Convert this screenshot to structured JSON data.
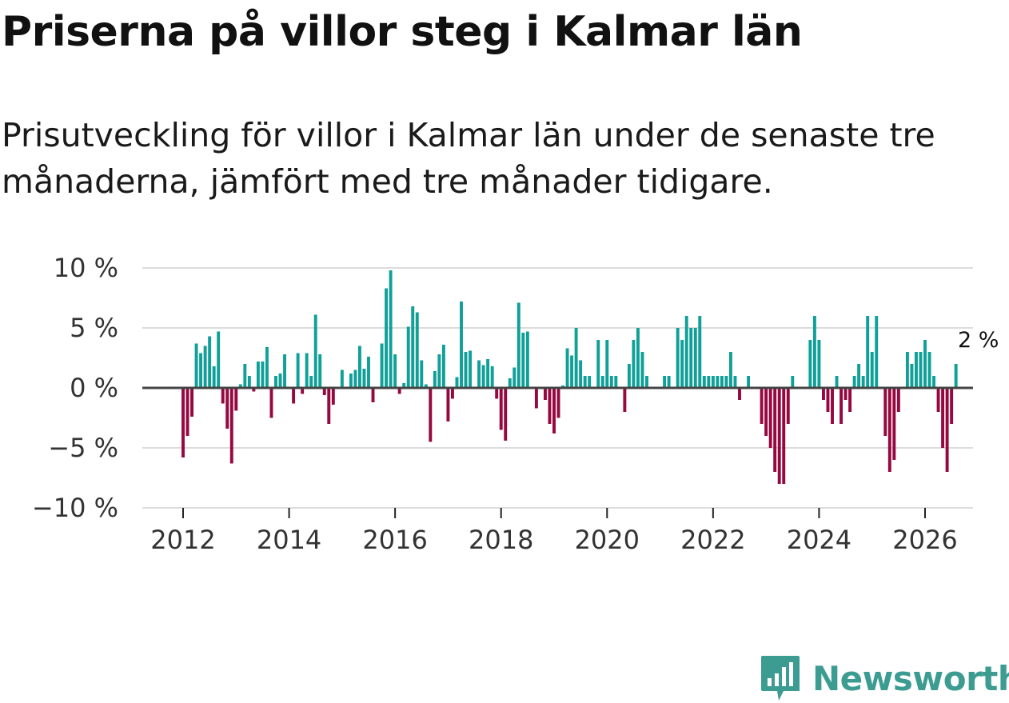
{
  "header": {
    "title": "Priserna på villor steg i Kalmar län",
    "subtitle": "Prisutveckling för villor i Kalmar län under de senaste tre månaderna, jämfört med tre månader tidigare."
  },
  "brand": {
    "name": "Newsworthy"
  },
  "colors": {
    "positive": "#10a098",
    "negative": "#960840",
    "grid": "#dcdcdc",
    "axis": "#444444"
  },
  "chart_data": {
    "type": "bar",
    "title": "Priserna på villor steg i Kalmar län",
    "xlabel": "",
    "ylabel": "",
    "ylim": [
      -10,
      10
    ],
    "y_ticks": [
      10,
      5,
      0,
      -5,
      -10
    ],
    "y_tick_labels": [
      "10 %",
      "5 %",
      "0 %",
      "−5 %",
      "−10 %"
    ],
    "x_ticks": [
      2012,
      2014,
      2016,
      2018,
      2020,
      2022,
      2024,
      2026
    ],
    "x_tick_labels": [
      "2012",
      "2014",
      "2016",
      "2018",
      "2020",
      "2022",
      "2024",
      "2026"
    ],
    "start": "2012-01",
    "frequency": "monthly",
    "end_label": "2 %",
    "values": [
      -5.8,
      -4.0,
      -2.4,
      3.7,
      2.9,
      3.5,
      4.3,
      1.8,
      4.7,
      -1.3,
      -3.4,
      -6.3,
      -1.9,
      0.3,
      2.0,
      1.0,
      -0.3,
      2.2,
      2.2,
      3.4,
      -2.5,
      1.0,
      1.2,
      2.8,
      0.0,
      -1.3,
      2.9,
      -0.5,
      2.9,
      1.0,
      6.1,
      2.8,
      -0.6,
      -3.0,
      -1.4,
      0.0,
      1.5,
      0.0,
      1.2,
      1.5,
      3.5,
      1.6,
      2.6,
      -1.2,
      0.0,
      3.7,
      8.3,
      9.8,
      2.8,
      -0.5,
      0.4,
      5.1,
      6.8,
      6.3,
      2.3,
      0.3,
      -4.5,
      1.4,
      2.8,
      3.6,
      -2.8,
      -0.9,
      0.9,
      7.2,
      3.0,
      3.1,
      0.0,
      2.3,
      1.9,
      2.4,
      1.8,
      -0.9,
      -3.5,
      -4.4,
      0.8,
      1.7,
      7.1,
      4.6,
      4.7,
      0.0,
      -1.7,
      0.0,
      -1.0,
      -3.0,
      -3.8,
      -2.5,
      0.2,
      3.3,
      2.7,
      5.0,
      2.3,
      1.0,
      1.0,
      0.0,
      4.0,
      1.0,
      4.0,
      1.0,
      1.0,
      0.0,
      -2.0,
      2.0,
      4.0,
      5.0,
      3.0,
      1.0,
      0.0,
      0.0,
      0.0,
      1.0,
      1.0,
      0.0,
      5.0,
      4.0,
      6.0,
      5.0,
      5.0,
      6.0,
      1.0,
      1.0,
      1.0,
      1.0,
      1.0,
      1.0,
      3.0,
      1.0,
      -1.0,
      0.0,
      1.0,
      0.0,
      0.0,
      -3.0,
      -4.0,
      -5.0,
      -7.0,
      -8.0,
      -8.0,
      -3.0,
      1.0,
      0.0,
      0.0,
      0.0,
      4.0,
      6.0,
      4.0,
      -1.0,
      -2.0,
      -3.0,
      1.0,
      -3.0,
      -1.0,
      -2.0,
      1.0,
      2.0,
      1.0,
      6.0,
      3.0,
      6.0,
      0.0,
      -4.0,
      -7.0,
      -6.0,
      -2.0,
      0.0,
      3.0,
      2.0,
      3.0,
      3.0,
      4.0,
      3.0,
      1.0,
      -2.0,
      -5.0,
      -7.0,
      -3.0,
      2.0
    ]
  }
}
